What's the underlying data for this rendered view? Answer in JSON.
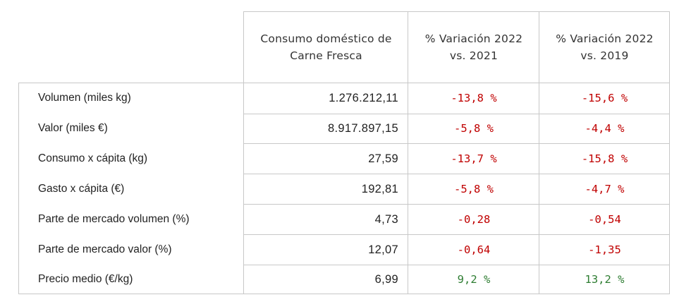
{
  "table": {
    "headers": {
      "col1": [
        "Consumo doméstico de",
        "Carne Fresca"
      ],
      "col2": [
        "% Variación 2022",
        "vs. 2021"
      ],
      "col3": [
        "% Variación 2022",
        "vs. 2019"
      ]
    },
    "rows": [
      {
        "label": "Volumen (miles kg)",
        "value": "1.276.212,11",
        "var2021": "-13,8 %",
        "var2019": "-15,6 %",
        "c2021": "neg",
        "c2019": "neg"
      },
      {
        "label": "Valor (miles €)",
        "value": "8.917.897,15",
        "var2021": "-5,8 %",
        "var2019": "-4,4 %",
        "c2021": "neg",
        "c2019": "neg"
      },
      {
        "label": "Consumo x cápita (kg)",
        "value": "27,59",
        "var2021": "-13,7 %",
        "var2019": "-15,8 %",
        "c2021": "neg",
        "c2019": "neg"
      },
      {
        "label": "Gasto x cápita (€)",
        "value": "192,81",
        "var2021": "-5,8 %",
        "var2019": "-4,7 %",
        "c2021": "neg",
        "c2019": "neg"
      },
      {
        "label": "Parte de mercado volumen (%)",
        "value": "4,73",
        "var2021": "-0,28",
        "var2019": "-0,54",
        "c2021": "neg",
        "c2019": "neg"
      },
      {
        "label": "Parte de mercado valor (%)",
        "value": "12,07",
        "var2021": "-0,64",
        "var2019": "-1,35",
        "c2021": "neg",
        "c2019": "neg"
      },
      {
        "label": "Precio medio (€/kg)",
        "value": "6,99",
        "var2021": "9,2 %",
        "var2019": "13,2 %",
        "c2021": "pos",
        "c2019": "pos"
      }
    ],
    "colors": {
      "negative": "#c00000",
      "positive": "#2e7d32",
      "border": "#c8c8c8"
    }
  }
}
